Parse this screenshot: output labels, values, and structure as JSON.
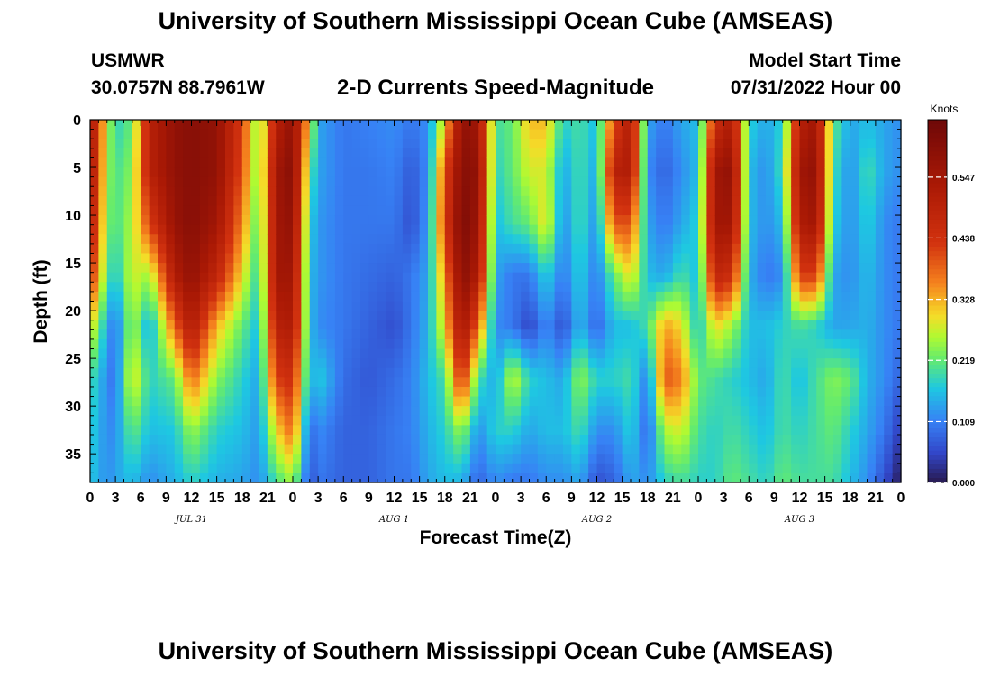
{
  "header": {
    "title": "University of Southern Mississippi Ocean Cube (AMSEAS)",
    "station": "USMWR",
    "coords": "30.0757N  88.7961W",
    "subtitle": "2-D Currents Speed-Magnitude",
    "model_start_label": "Model Start Time",
    "model_start_value": "07/31/2022 Hour 00"
  },
  "footer": {
    "title": "University of Southern Mississippi Ocean Cube (AMSEAS)"
  },
  "chart_data": {
    "type": "heatmap",
    "title": "2-D Currents Speed-Magnitude",
    "xlabel": "Forecast Time(Z)",
    "ylabel": "Depth (ft)",
    "x_range_hours": [
      0,
      96
    ],
    "ylim": [
      0,
      38
    ],
    "x_ticks": [
      "0",
      "3",
      "6",
      "9",
      "12",
      "15",
      "18",
      "21",
      "0",
      "3",
      "6",
      "9",
      "12",
      "15",
      "18",
      "21",
      "0",
      "3",
      "6",
      "9",
      "12",
      "15",
      "18",
      "21",
      "0",
      "3",
      "6",
      "9",
      "12",
      "15",
      "18",
      "21",
      "0"
    ],
    "y_ticks": [
      0,
      5,
      10,
      15,
      20,
      25,
      30,
      35
    ],
    "y_tick_labels": [
      "0",
      "5",
      "10",
      "15",
      "20",
      "25",
      "30",
      "35"
    ],
    "day_labels": [
      {
        "label": "JUL 31",
        "hour": 12
      },
      {
        "label": "AUG 1",
        "hour": 36
      },
      {
        "label": "AUG 2",
        "hour": 60
      },
      {
        "label": "AUG 3",
        "hour": 84
      }
    ],
    "colorbar": {
      "unit": "Knots",
      "min": 0.0,
      "max": 0.65,
      "ticks": [
        0.0,
        0.109,
        0.219,
        0.328,
        0.438,
        0.547
      ],
      "tick_labels": [
        "0.000",
        "0.109",
        "0.219",
        "0.328",
        "0.438",
        "0.547"
      ]
    },
    "columns": [
      {
        "t": 0,
        "s": [
          0.55,
          0.55,
          0.52,
          0.45,
          0.3,
          0.2,
          0.18,
          0.17
        ]
      },
      {
        "t": 2,
        "s": [
          0.28,
          0.26,
          0.24,
          0.22,
          0.15,
          0.12,
          0.12,
          0.12
        ]
      },
      {
        "t": 3,
        "s": [
          0.18,
          0.2,
          0.2,
          0.16,
          0.09,
          0.09,
          0.12,
          0.14
        ]
      },
      {
        "t": 5,
        "s": [
          0.22,
          0.24,
          0.26,
          0.28,
          0.26,
          0.3,
          0.22,
          0.16
        ]
      },
      {
        "t": 7,
        "s": [
          0.5,
          0.5,
          0.42,
          0.25,
          0.14,
          0.18,
          0.16,
          0.12
        ]
      },
      {
        "t": 10,
        "s": [
          0.58,
          0.58,
          0.57,
          0.52,
          0.38,
          0.22,
          0.17,
          0.15
        ]
      },
      {
        "t": 12,
        "s": [
          0.6,
          0.6,
          0.6,
          0.58,
          0.52,
          0.38,
          0.25,
          0.18
        ]
      },
      {
        "t": 15,
        "s": [
          0.58,
          0.58,
          0.55,
          0.48,
          0.32,
          0.24,
          0.18,
          0.15
        ]
      },
      {
        "t": 18,
        "s": [
          0.42,
          0.4,
          0.36,
          0.3,
          0.22,
          0.18,
          0.16,
          0.14
        ]
      },
      {
        "t": 20,
        "s": [
          0.22,
          0.22,
          0.2,
          0.18,
          0.16,
          0.14,
          0.13,
          0.12
        ]
      },
      {
        "t": 22,
        "s": [
          0.5,
          0.55,
          0.55,
          0.55,
          0.5,
          0.42,
          0.3,
          0.2
        ]
      },
      {
        "t": 24,
        "s": [
          0.58,
          0.6,
          0.58,
          0.55,
          0.52,
          0.45,
          0.38,
          0.25
        ]
      },
      {
        "t": 26,
        "s": [
          0.3,
          0.22,
          0.18,
          0.16,
          0.16,
          0.14,
          0.08,
          0.06
        ]
      },
      {
        "t": 27,
        "s": [
          0.14,
          0.14,
          0.13,
          0.13,
          0.12,
          0.18,
          0.12,
          0.1
        ]
      },
      {
        "t": 30,
        "s": [
          0.1,
          0.1,
          0.1,
          0.1,
          0.1,
          0.09,
          0.08,
          0.08
        ]
      },
      {
        "t": 33,
        "s": [
          0.11,
          0.1,
          0.1,
          0.09,
          0.08,
          0.07,
          0.08,
          0.08
        ]
      },
      {
        "t": 36,
        "s": [
          0.12,
          0.11,
          0.1,
          0.08,
          0.06,
          0.09,
          0.1,
          0.1
        ]
      },
      {
        "t": 38,
        "s": [
          0.1,
          0.07,
          0.06,
          0.1,
          0.1,
          0.11,
          0.11,
          0.1
        ]
      },
      {
        "t": 40,
        "s": [
          0.12,
          0.12,
          0.13,
          0.14,
          0.15,
          0.16,
          0.15,
          0.14
        ]
      },
      {
        "t": 42,
        "s": [
          0.3,
          0.4,
          0.42,
          0.35,
          0.3,
          0.2,
          0.18,
          0.16
        ]
      },
      {
        "t": 44,
        "s": [
          0.58,
          0.6,
          0.62,
          0.6,
          0.55,
          0.45,
          0.25,
          0.15
        ]
      },
      {
        "t": 46,
        "s": [
          0.55,
          0.58,
          0.56,
          0.52,
          0.38,
          0.2,
          0.12,
          0.08
        ]
      },
      {
        "t": 48,
        "s": [
          0.2,
          0.18,
          0.16,
          0.14,
          0.12,
          0.14,
          0.18,
          0.12
        ]
      },
      {
        "t": 50,
        "s": [
          0.22,
          0.22,
          0.2,
          0.1,
          0.1,
          0.28,
          0.18,
          0.1
        ]
      },
      {
        "t": 52,
        "s": [
          0.32,
          0.28,
          0.22,
          0.1,
          0.05,
          0.18,
          0.14,
          0.1
        ]
      },
      {
        "t": 54,
        "s": [
          0.32,
          0.28,
          0.3,
          0.18,
          0.12,
          0.16,
          0.16,
          0.12
        ]
      },
      {
        "t": 56,
        "s": [
          0.18,
          0.14,
          0.12,
          0.1,
          0.06,
          0.14,
          0.16,
          0.12
        ]
      },
      {
        "t": 58,
        "s": [
          0.2,
          0.2,
          0.2,
          0.18,
          0.16,
          0.25,
          0.2,
          0.14
        ]
      },
      {
        "t": 60,
        "s": [
          0.16,
          0.14,
          0.12,
          0.1,
          0.08,
          0.18,
          0.12,
          0.06
        ]
      },
      {
        "t": 62,
        "s": [
          0.4,
          0.5,
          0.4,
          0.22,
          0.16,
          0.18,
          0.12,
          0.08
        ]
      },
      {
        "t": 64,
        "s": [
          0.52,
          0.52,
          0.4,
          0.3,
          0.16,
          0.2,
          0.18,
          0.14
        ]
      },
      {
        "t": 66,
        "s": [
          0.14,
          0.12,
          0.14,
          0.16,
          0.2,
          0.1,
          0.08,
          0.12
        ]
      },
      {
        "t": 68,
        "s": [
          0.1,
          0.08,
          0.1,
          0.14,
          0.34,
          0.4,
          0.26,
          0.18
        ]
      },
      {
        "t": 70,
        "s": [
          0.14,
          0.12,
          0.14,
          0.2,
          0.3,
          0.36,
          0.28,
          0.2
        ]
      },
      {
        "t": 72,
        "s": [
          0.16,
          0.16,
          0.18,
          0.16,
          0.16,
          0.22,
          0.2,
          0.18
        ]
      },
      {
        "t": 74,
        "s": [
          0.45,
          0.55,
          0.55,
          0.48,
          0.3,
          0.2,
          0.18,
          0.18
        ]
      },
      {
        "t": 76,
        "s": [
          0.52,
          0.58,
          0.55,
          0.45,
          0.25,
          0.18,
          0.2,
          0.22
        ]
      },
      {
        "t": 78,
        "s": [
          0.18,
          0.16,
          0.16,
          0.15,
          0.16,
          0.16,
          0.18,
          0.2
        ]
      },
      {
        "t": 80,
        "s": [
          0.14,
          0.12,
          0.12,
          0.1,
          0.16,
          0.14,
          0.16,
          0.18
        ]
      },
      {
        "t": 82,
        "s": [
          0.18,
          0.2,
          0.16,
          0.12,
          0.18,
          0.2,
          0.2,
          0.22
        ]
      },
      {
        "t": 84,
        "s": [
          0.5,
          0.55,
          0.52,
          0.42,
          0.2,
          0.16,
          0.18,
          0.2
        ]
      },
      {
        "t": 86,
        "s": [
          0.55,
          0.58,
          0.55,
          0.42,
          0.18,
          0.2,
          0.2,
          0.2
        ]
      },
      {
        "t": 88,
        "s": [
          0.22,
          0.2,
          0.18,
          0.14,
          0.14,
          0.24,
          0.22,
          0.2
        ]
      },
      {
        "t": 90,
        "s": [
          0.14,
          0.12,
          0.12,
          0.12,
          0.14,
          0.22,
          0.18,
          0.16
        ]
      },
      {
        "t": 92,
        "s": [
          0.16,
          0.2,
          0.18,
          0.16,
          0.15,
          0.15,
          0.14,
          0.12
        ]
      },
      {
        "t": 94,
        "s": [
          0.14,
          0.14,
          0.12,
          0.12,
          0.12,
          0.12,
          0.1,
          0.06
        ]
      },
      {
        "t": 96,
        "s": [
          0.12,
          0.12,
          0.1,
          0.1,
          0.1,
          0.08,
          0.04,
          0.0
        ]
      }
    ]
  }
}
